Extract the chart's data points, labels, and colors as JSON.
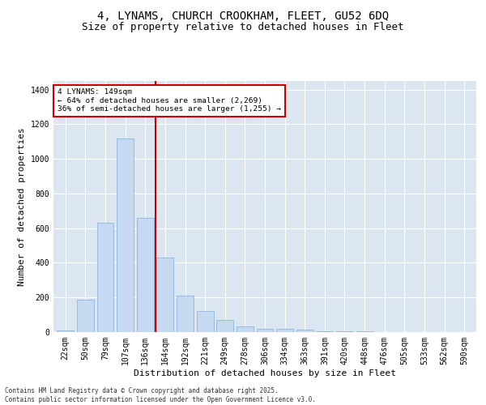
{
  "title_line1": "4, LYNAMS, CHURCH CROOKHAM, FLEET, GU52 6DQ",
  "title_line2": "Size of property relative to detached houses in Fleet",
  "xlabel": "Distribution of detached houses by size in Fleet",
  "ylabel": "Number of detached properties",
  "bar_labels": [
    "22sqm",
    "50sqm",
    "79sqm",
    "107sqm",
    "136sqm",
    "164sqm",
    "192sqm",
    "221sqm",
    "249sqm",
    "278sqm",
    "306sqm",
    "334sqm",
    "363sqm",
    "391sqm",
    "420sqm",
    "448sqm",
    "476sqm",
    "505sqm",
    "533sqm",
    "562sqm",
    "590sqm"
  ],
  "bar_values": [
    10,
    185,
    630,
    1120,
    660,
    430,
    210,
    120,
    70,
    35,
    20,
    18,
    16,
    5,
    3,
    3,
    2,
    1,
    0,
    0,
    0
  ],
  "bar_color": "#c6d9f1",
  "bar_edgecolor": "#8db4e2",
  "bg_color": "#dce6f1",
  "grid_color": "#ffffff",
  "vline_x": 4.5,
  "vline_color": "#cc0000",
  "annotation_text": "4 LYNAMS: 149sqm\n← 64% of detached houses are smaller (2,269)\n36% of semi-detached houses are larger (1,255) →",
  "annotation_box_color": "#cc0000",
  "ylim": [
    0,
    1450
  ],
  "yticks": [
    0,
    200,
    400,
    600,
    800,
    1000,
    1200,
    1400
  ],
  "footnote": "Contains HM Land Registry data © Crown copyright and database right 2025.\nContains public sector information licensed under the Open Government Licence v3.0.",
  "title_fontsize": 10,
  "subtitle_fontsize": 9,
  "axis_fontsize": 8,
  "tick_fontsize": 7
}
